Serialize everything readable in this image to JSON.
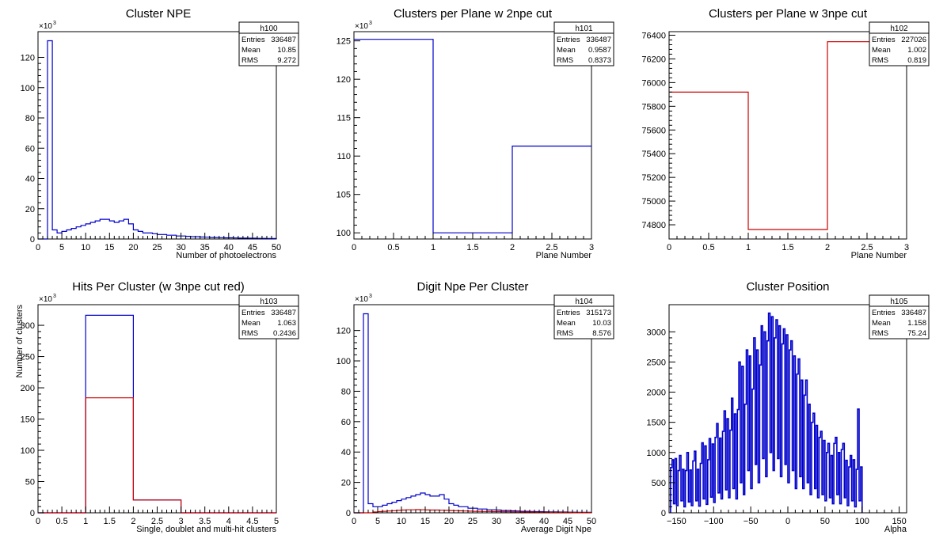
{
  "chart_data": [
    {
      "type": "histogram",
      "title": "Cluster NPE",
      "xlabel": "Number of photoelectrons",
      "ylabel": "",
      "xlim": [
        0,
        50
      ],
      "ylim": [
        0,
        137
      ],
      "y_multiplier": "×10",
      "y_multiplier_exp": "3",
      "xticks": [
        0,
        5,
        10,
        15,
        20,
        25,
        30,
        35,
        40,
        45,
        50
      ],
      "yticks": [
        0,
        20,
        40,
        60,
        80,
        100,
        120
      ],
      "stats": {
        "name": "h100",
        "entries_label": "Entries",
        "entries": "336487",
        "mean_label": "Mean",
        "mean": "10.85",
        "rms_label": "RMS",
        "rms": "9.272"
      },
      "series": [
        {
          "color": "#0000cc",
          "bins": [
            0,
            1,
            2,
            3,
            4,
            5,
            6,
            7,
            8,
            9,
            10,
            11,
            12,
            13,
            14,
            15,
            16,
            17,
            18,
            19,
            20,
            21,
            22,
            23,
            24,
            25,
            26,
            27,
            28,
            29,
            30,
            31,
            32,
            33,
            34,
            35,
            36,
            37,
            38,
            39,
            40,
            41,
            42,
            43,
            44,
            45,
            46,
            47,
            48,
            49,
            50
          ],
          "values": [
            0,
            0,
            131,
            6,
            4,
            5,
            6,
            7,
            8,
            9,
            10,
            11,
            12,
            13,
            13,
            12,
            11,
            12,
            13,
            10,
            6,
            5,
            4,
            4,
            3.5,
            3,
            3,
            2.5,
            2.5,
            2,
            2,
            1.8,
            1.5,
            1.5,
            1.3,
            1.2,
            1,
            1,
            0.9,
            0.8,
            0.8,
            0.7,
            0.6,
            0.6,
            0.5,
            0.5,
            0.4,
            0.4,
            0.3,
            0.3
          ]
        }
      ]
    },
    {
      "type": "histogram",
      "title": "Clusters per Plane w 2npe cut",
      "xlabel": "Plane Number",
      "ylabel": "",
      "xlim": [
        0,
        3
      ],
      "ylim": [
        99.2,
        126.2
      ],
      "y_multiplier": "×10",
      "y_multiplier_exp": "3",
      "xticks": [
        0,
        0.5,
        1,
        1.5,
        2,
        2.5,
        3
      ],
      "yticks": [
        100,
        105,
        110,
        115,
        120,
        125
      ],
      "stats": {
        "name": "h101",
        "entries_label": "Entries",
        "entries": "336487",
        "mean_label": "Mean",
        "mean": "0.9587",
        "rms_label": "RMS",
        "rms": "0.8373"
      },
      "series": [
        {
          "color": "#0000cc",
          "bins": [
            0,
            1,
            2,
            3
          ],
          "values": [
            125.2,
            100.0,
            111.3
          ]
        }
      ]
    },
    {
      "type": "histogram",
      "title": "Clusters per Plane w 3npe cut",
      "xlabel": "Plane Number",
      "ylabel": "",
      "xlim": [
        0,
        3
      ],
      "ylim": [
        74680,
        76430
      ],
      "y_multiplier": "",
      "y_multiplier_exp": "",
      "xticks": [
        0,
        0.5,
        1,
        1.5,
        2,
        2.5,
        3
      ],
      "yticks": [
        74800,
        75000,
        75200,
        75400,
        75600,
        75800,
        76000,
        76200,
        76400
      ],
      "stats": {
        "name": "h102",
        "entries_label": "Entries",
        "entries": "227026",
        "mean_label": "Mean",
        "mean": "1.002",
        "rms_label": "RMS",
        "rms": "0.819"
      },
      "series": [
        {
          "color": "#cc0000",
          "bins": [
            0,
            1,
            2,
            3
          ],
          "values": [
            75920,
            74760,
            76345
          ]
        }
      ]
    },
    {
      "type": "histogram",
      "title": "Hits Per Cluster (w 3npe cut red)",
      "xlabel": "Single, doublet and multi-hit clusters",
      "ylabel": "Number of clusters",
      "xlim": [
        0,
        5
      ],
      "ylim": [
        0,
        333
      ],
      "y_multiplier": "×10",
      "y_multiplier_exp": "3",
      "xticks": [
        0,
        0.5,
        1,
        1.5,
        2,
        2.5,
        3,
        3.5,
        4,
        4.5,
        5
      ],
      "yticks": [
        0,
        50,
        100,
        150,
        200,
        250,
        300
      ],
      "stats": {
        "name": "h103",
        "entries_label": "Entries",
        "entries": "336487",
        "mean_label": "Mean",
        "mean": "1.063",
        "rms_label": "RMS",
        "rms": "0.2436"
      },
      "series": [
        {
          "color": "#0000cc",
          "bins": [
            0,
            1,
            2,
            3,
            4,
            5
          ],
          "values": [
            0,
            316,
            20.5,
            0,
            0
          ]
        },
        {
          "color": "#cc0000",
          "bins": [
            0,
            1,
            2,
            3,
            4,
            5
          ],
          "values": [
            0,
            184,
            20.5,
            0,
            0
          ]
        }
      ]
    },
    {
      "type": "histogram",
      "title": "Digit Npe Per Cluster",
      "xlabel": "Average Digit Npe",
      "ylabel": "",
      "xlim": [
        0,
        50
      ],
      "ylim": [
        0,
        137
      ],
      "y_multiplier": "×10",
      "y_multiplier_exp": "3",
      "xticks": [
        0,
        5,
        10,
        15,
        20,
        25,
        30,
        35,
        40,
        45,
        50
      ],
      "yticks": [
        0,
        20,
        40,
        60,
        80,
        100,
        120
      ],
      "stats": {
        "name": "h104",
        "entries_label": "Entries",
        "entries": "315173",
        "mean_label": "Mean",
        "mean": "10.03",
        "rms_label": "RMS",
        "rms": "8.576"
      },
      "series": [
        {
          "color": "#0000cc",
          "bins": [
            0,
            1,
            2,
            3,
            4,
            5,
            6,
            7,
            8,
            9,
            10,
            11,
            12,
            13,
            14,
            15,
            16,
            17,
            18,
            19,
            20,
            21,
            22,
            23,
            24,
            25,
            26,
            27,
            28,
            29,
            30,
            31,
            32,
            33,
            34,
            35,
            36,
            37,
            38,
            39,
            40,
            41,
            42,
            43,
            44,
            45,
            46,
            47,
            48,
            49,
            50
          ],
          "values": [
            0,
            0,
            131,
            6,
            4,
            4,
            5,
            6,
            7,
            8,
            9,
            10,
            11,
            12,
            13,
            12,
            11,
            11,
            12,
            9,
            6,
            5,
            4,
            4,
            3,
            3,
            2.5,
            2.5,
            2,
            2,
            1.8,
            1.5,
            1.5,
            1.3,
            1.2,
            1,
            1,
            0.9,
            0.8,
            0.8,
            0.7,
            0.6,
            0.6,
            0.5,
            0.5,
            0.4,
            0.4,
            0.3,
            0.3,
            0.3
          ]
        },
        {
          "color": "#cc0000",
          "bins": [
            0,
            1,
            2,
            3,
            4,
            5,
            6,
            7,
            8,
            9,
            10,
            11,
            12,
            13,
            14,
            15,
            16,
            17,
            18,
            19,
            20,
            21,
            22,
            23,
            24,
            25,
            26,
            27,
            28,
            29,
            30,
            31,
            32,
            33,
            34,
            35,
            36,
            37,
            38,
            39,
            40,
            41,
            42,
            43,
            44,
            45,
            46,
            47,
            48,
            49,
            50
          ],
          "values": [
            0,
            0,
            0,
            0,
            0.5,
            0.8,
            1,
            1.2,
            1.4,
            1.6,
            1.8,
            2,
            2,
            2.1,
            2,
            1.9,
            1.8,
            1.8,
            1.7,
            1.6,
            1.5,
            1.4,
            1.3,
            1.2,
            1.1,
            1,
            1,
            0.9,
            0.9,
            0.8,
            0.8,
            0.7,
            0.7,
            0.6,
            0.6,
            0.5,
            0.5,
            0.5,
            0.4,
            0.4,
            0.4,
            0.3,
            0.3,
            0.3,
            0.3,
            0.3,
            0.2,
            0.2,
            0.2,
            0.2
          ]
        }
      ]
    },
    {
      "type": "histogram",
      "title": "Cluster Position",
      "xlabel": "Alpha",
      "ylabel": "",
      "xlim": [
        -160,
        160
      ],
      "ylim": [
        0,
        3450
      ],
      "y_multiplier": "",
      "y_multiplier_exp": "",
      "xticks": [
        -150,
        -100,
        -50,
        0,
        50,
        100,
        150
      ],
      "yticks": [
        0,
        500,
        1000,
        1500,
        2000,
        2500,
        3000
      ],
      "stats": {
        "name": "h105",
        "entries_label": "Entries",
        "entries": "336487",
        "mean_label": "Mean",
        "mean": "1.158",
        "rms_label": "RMS",
        "rms": "75.24"
      },
      "series": [
        {
          "color": "#0000cc",
          "step": 2,
          "xstart": -158,
          "values": [
            750,
            880,
            150,
            900,
            120,
            700,
            950,
            200,
            720,
            100,
            700,
            1000,
            180,
            710,
            120,
            860,
            1020,
            200,
            720,
            110,
            820,
            1160,
            230,
            1110,
            140,
            880,
            1230,
            260,
            1140,
            170,
            1250,
            1480,
            330,
            1240,
            230,
            1350,
            1690,
            380,
            1560,
            250,
            1370,
            1900,
            400,
            1640,
            230,
            1710,
            2500,
            500,
            2430,
            300,
            1800,
            2700,
            700,
            2600,
            400,
            2050,
            2900,
            800,
            2700,
            500,
            2450,
            3100,
            900,
            3000,
            600,
            2850,
            3310,
            1000,
            3250,
            700,
            2900,
            3200,
            900,
            3100,
            600,
            2800,
            3050,
            800,
            2950,
            500,
            2700,
            2850,
            700,
            2600,
            400,
            2300,
            2550,
            600,
            2200,
            400,
            1950,
            2200,
            500,
            1800,
            300,
            1500,
            1650,
            400,
            1450,
            250,
            1250,
            1350,
            300,
            1200,
            200,
            1000,
            1150,
            250,
            950,
            150,
            1150,
            1250,
            300,
            1000,
            150,
            1050,
            1150,
            250,
            870,
            120,
            760,
            950,
            200,
            880,
            100,
            720,
            1720,
            200,
            760
          ]
        }
      ]
    }
  ]
}
